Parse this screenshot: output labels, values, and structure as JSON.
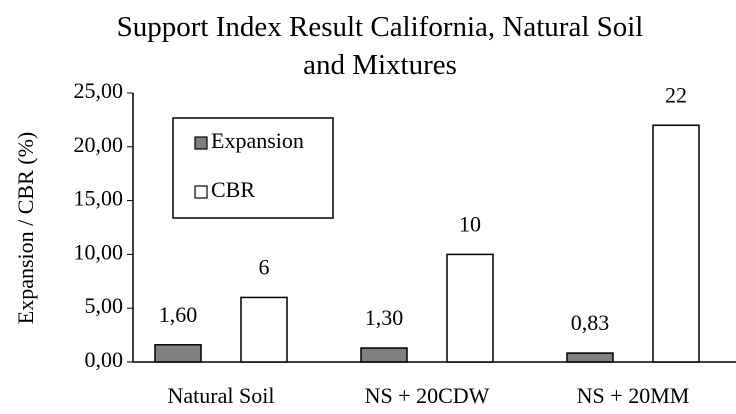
{
  "chart_data": {
    "type": "bar",
    "title": "Support Index Result California, Natural Soil and Mixtures",
    "y_label": "Expansion / CBR (%)",
    "categories": [
      "Natural Soil",
      "NS + 20CDW",
      "NS + 20MM"
    ],
    "series": [
      {
        "name": "Expansion",
        "color": "#808080",
        "values": [
          1.6,
          1.3,
          0.83
        ],
        "value_labels": [
          "1,60",
          "1,30",
          "0,83"
        ]
      },
      {
        "name": "CBR",
        "color": "#ffffff",
        "values": [
          6,
          10,
          22
        ]
      }
    ],
    "ylim": [
      0,
      25
    ],
    "yticks": [
      {
        "value": 0,
        "label": "0,00"
      },
      {
        "value": 5,
        "label": "5,00"
      },
      {
        "value": 10,
        "label": "10,00"
      },
      {
        "value": 15,
        "label": "15,00"
      },
      {
        "value": 20,
        "label": "20,00"
      },
      {
        "value": 25,
        "label": "25,00"
      }
    ],
    "grid": false,
    "legend": "upper left"
  }
}
